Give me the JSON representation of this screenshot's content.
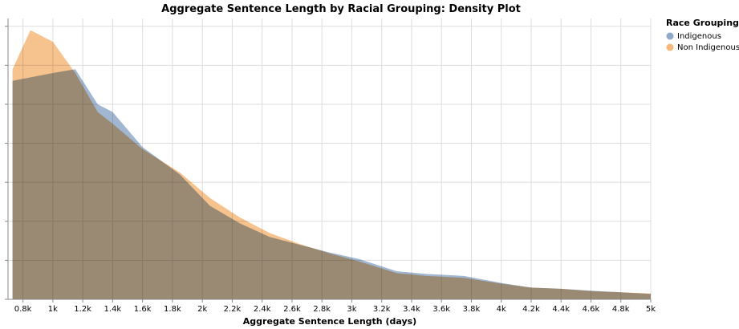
{
  "chart_data": {
    "type": "area",
    "title": "Aggregate Sentence Length by Racial Grouping: Density Plot",
    "xlabel": "Aggregate Sentence Length (days)",
    "ylabel": "",
    "xlim": [
      700,
      5000
    ],
    "ylim": [
      0,
      7.2
    ],
    "x_ticks": [
      800,
      1000,
      1200,
      1400,
      1600,
      1800,
      2000,
      2200,
      2400,
      2600,
      2800,
      3000,
      3200,
      3400,
      3600,
      3800,
      4000,
      4200,
      4400,
      4600,
      4800,
      5000
    ],
    "x_tick_labels": [
      "0.8k",
      "1k",
      "1.2k",
      "1.4k",
      "1.6k",
      "1.8k",
      "2k",
      "2.2k",
      "2.4k",
      "2.6k",
      "2.8k",
      "3k",
      "3.2k",
      "3.4k",
      "3.6k",
      "3.8k",
      "4k",
      "4.2k",
      "4.4k",
      "4.6k",
      "4.8k",
      "5k"
    ],
    "y_ticks": [
      0,
      1,
      2,
      3,
      4,
      5,
      6,
      7
    ],
    "grid": true,
    "legend": {
      "title": "Race Grouping",
      "position": "top-right"
    },
    "series": [
      {
        "name": "Indigenous",
        "color": "#8fa9c9",
        "x": [
          730,
          1000,
          1150,
          1300,
          1400,
          1600,
          1850,
          2050,
          2250,
          2450,
          2650,
          2850,
          3050,
          3300,
          3500,
          3750,
          4000,
          4200,
          4400,
          4600,
          4800,
          5000
        ],
        "y": [
          5.6,
          5.8,
          5.9,
          5.0,
          4.8,
          3.9,
          3.2,
          2.4,
          1.95,
          1.6,
          1.4,
          1.2,
          1.03,
          0.72,
          0.65,
          0.6,
          0.42,
          0.3,
          0.27,
          0.22,
          0.18,
          0.14
        ]
      },
      {
        "name": "Non Indigenous",
        "color": "#f5b77a",
        "x": [
          730,
          850,
          1000,
          1150,
          1300,
          1400,
          1600,
          1850,
          2050,
          2250,
          2450,
          2650,
          2850,
          3050,
          3300,
          3500,
          3750,
          4000,
          4200,
          4400,
          4600,
          4800,
          5000
        ],
        "y": [
          5.9,
          6.9,
          6.6,
          5.8,
          4.8,
          4.5,
          3.85,
          3.25,
          2.6,
          2.1,
          1.7,
          1.42,
          1.18,
          0.97,
          0.67,
          0.6,
          0.55,
          0.4,
          0.3,
          0.27,
          0.21,
          0.18,
          0.15
        ]
      }
    ]
  }
}
